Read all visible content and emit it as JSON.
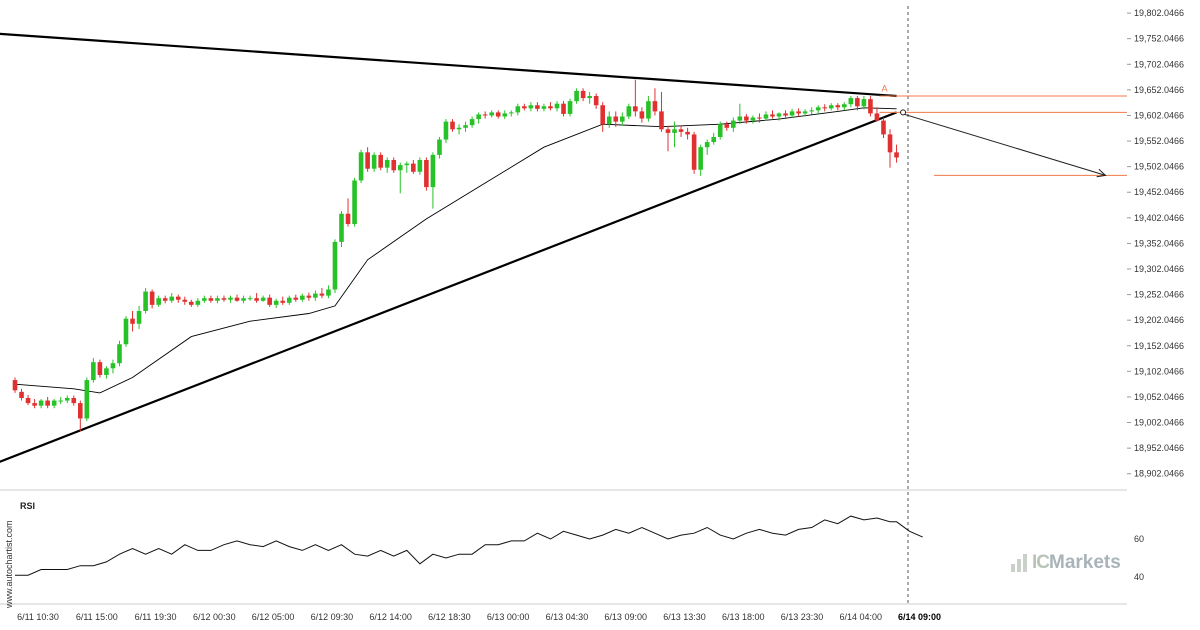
{
  "chart_data": {
    "type": "candlestick",
    "title": "",
    "price_axis": {
      "ticks": [
        "19,802.0466",
        "19,752.0466",
        "19,702.0466",
        "19,652.0466",
        "19,602.0466",
        "19,552.0466",
        "19,502.0466",
        "19,452.0466",
        "19,402.0466",
        "19,352.0466",
        "19,302.0466",
        "19,252.0466",
        "19,202.0466",
        "19,152.0466",
        "19,102.0466",
        "19,052.0466",
        "19,002.0466",
        "18,952.0466",
        "18,902.0466"
      ],
      "tick_values": [
        19802.0466,
        19752.0466,
        19702.0466,
        19652.0466,
        19602.0466,
        19552.0466,
        19502.0466,
        19452.0466,
        19402.0466,
        19352.0466,
        19302.0466,
        19252.0466,
        19202.0466,
        19152.0466,
        19102.0466,
        19052.0466,
        19002.0466,
        18952.0466,
        18902.0466
      ],
      "range": [
        18880,
        19812
      ]
    },
    "time_axis": {
      "labels": [
        "6/11 10:30",
        "6/11 15:00",
        "6/11 19:30",
        "6/12 00:30",
        "6/12 05:00",
        "6/12 09:30",
        "6/12 14:00",
        "6/12 18:30",
        "6/13 00:00",
        "6/13 04:30",
        "6/13 09:00",
        "6/13 13:30",
        "6/13 18:00",
        "6/13 23:30",
        "6/14 04:00",
        "6/14 09:00"
      ],
      "label_bar_index": [
        0,
        9,
        18,
        27,
        36,
        45,
        54,
        63,
        72,
        81,
        90,
        99,
        108,
        117,
        126,
        135
      ],
      "highlight_label": "6/14 09:00",
      "total_bars": 140
    },
    "candles_ohlc": [
      [
        19085,
        19090,
        19060,
        19065
      ],
      [
        19062,
        19068,
        19045,
        19050
      ],
      [
        19050,
        19056,
        19036,
        19040
      ],
      [
        19040,
        19048,
        19030,
        19035
      ],
      [
        19035,
        19048,
        19030,
        19045
      ],
      [
        19045,
        19052,
        19030,
        19035
      ],
      [
        19035,
        19048,
        19030,
        19045
      ],
      [
        19045,
        19052,
        19038,
        19045
      ],
      [
        19045,
        19055,
        19040,
        19050
      ],
      [
        19050,
        19055,
        19035,
        19040
      ],
      [
        19040,
        19045,
        18985,
        19010
      ],
      [
        19010,
        19090,
        19005,
        19085
      ],
      [
        19085,
        19128,
        19080,
        19120
      ],
      [
        19120,
        19125,
        19090,
        19095
      ],
      [
        19095,
        19112,
        19088,
        19108
      ],
      [
        19108,
        19125,
        19098,
        19118
      ],
      [
        19118,
        19162,
        19112,
        19155
      ],
      [
        19155,
        19210,
        19150,
        19205
      ],
      [
        19205,
        19220,
        19180,
        19195
      ],
      [
        19195,
        19230,
        19185,
        19220
      ],
      [
        19220,
        19265,
        19215,
        19258
      ],
      [
        19258,
        19262,
        19225,
        19232
      ],
      [
        19232,
        19250,
        19228,
        19245
      ],
      [
        19245,
        19250,
        19235,
        19240
      ],
      [
        19240,
        19255,
        19236,
        19248
      ],
      [
        19248,
        19252,
        19236,
        19242
      ],
      [
        19242,
        19248,
        19232,
        19238
      ],
      [
        19238,
        19242,
        19228,
        19232
      ],
      [
        19232,
        19245,
        19228,
        19240
      ],
      [
        19240,
        19250,
        19236,
        19245
      ],
      [
        19245,
        19250,
        19236,
        19240
      ],
      [
        19240,
        19250,
        19235,
        19245
      ],
      [
        19245,
        19250,
        19238,
        19242
      ],
      [
        19242,
        19250,
        19236,
        19246
      ],
      [
        19246,
        19252,
        19238,
        19240
      ],
      [
        19240,
        19250,
        19235,
        19245
      ],
      [
        19245,
        19250,
        19240,
        19245
      ],
      [
        19245,
        19255,
        19236,
        19240
      ],
      [
        19240,
        19250,
        19238,
        19246
      ],
      [
        19246,
        19252,
        19228,
        19232
      ],
      [
        19232,
        19244,
        19226,
        19240
      ],
      [
        19240,
        19248,
        19232,
        19236
      ],
      [
        19236,
        19250,
        19232,
        19246
      ],
      [
        19246,
        19252,
        19238,
        19242
      ],
      [
        19242,
        19254,
        19238,
        19250
      ],
      [
        19250,
        19256,
        19240,
        19246
      ],
      [
        19246,
        19260,
        19240,
        19254
      ],
      [
        19254,
        19265,
        19245,
        19250
      ],
      [
        19250,
        19270,
        19245,
        19262
      ],
      [
        19262,
        19360,
        19255,
        19355
      ],
      [
        19355,
        19415,
        19345,
        19410
      ],
      [
        19410,
        19440,
        19385,
        19390
      ],
      [
        19390,
        19480,
        19385,
        19475
      ],
      [
        19475,
        19535,
        19470,
        19530
      ],
      [
        19530,
        19540,
        19492,
        19498
      ],
      [
        19498,
        19530,
        19492,
        19525
      ],
      [
        19525,
        19530,
        19495,
        19500
      ],
      [
        19500,
        19520,
        19490,
        19515
      ],
      [
        19515,
        19520,
        19490,
        19495
      ],
      [
        19495,
        19510,
        19450,
        19505
      ],
      [
        19505,
        19512,
        19490,
        19508
      ],
      [
        19508,
        19515,
        19488,
        19492
      ],
      [
        19492,
        19520,
        19486,
        19515
      ],
      [
        19515,
        19520,
        19455,
        19462
      ],
      [
        19462,
        19530,
        19420,
        19525
      ],
      [
        19525,
        19560,
        19518,
        19555
      ],
      [
        19555,
        19595,
        19548,
        19590
      ],
      [
        19590,
        19595,
        19570,
        19575
      ],
      [
        19575,
        19585,
        19565,
        19578
      ],
      [
        19578,
        19590,
        19570,
        19583
      ],
      [
        19583,
        19600,
        19578,
        19595
      ],
      [
        19595,
        19608,
        19586,
        19604
      ],
      [
        19604,
        19610,
        19596,
        19602
      ],
      [
        19602,
        19612,
        19598,
        19608
      ],
      [
        19608,
        19612,
        19596,
        19600
      ],
      [
        19600,
        19612,
        19595,
        19606
      ],
      [
        19606,
        19612,
        19600,
        19608
      ],
      [
        19608,
        19625,
        19602,
        19620
      ],
      [
        19620,
        19625,
        19612,
        19616
      ],
      [
        19616,
        19628,
        19610,
        19622
      ],
      [
        19622,
        19628,
        19610,
        19615
      ],
      [
        19615,
        19625,
        19610,
        19620
      ],
      [
        19620,
        19628,
        19612,
        19616
      ],
      [
        19616,
        19630,
        19610,
        19625
      ],
      [
        19625,
        19630,
        19600,
        19605
      ],
      [
        19605,
        19635,
        19600,
        19630
      ],
      [
        19630,
        19655,
        19625,
        19650
      ],
      [
        19650,
        19655,
        19630,
        19636
      ],
      [
        19636,
        19648,
        19625,
        19640
      ],
      [
        19640,
        19645,
        19615,
        19622
      ],
      [
        19622,
        19628,
        19570,
        19585
      ],
      [
        19585,
        19610,
        19578,
        19600
      ],
      [
        19600,
        19610,
        19580,
        19590
      ],
      [
        19590,
        19608,
        19582,
        19600
      ],
      [
        19600,
        19625,
        19595,
        19620
      ],
      [
        19620,
        19672,
        19600,
        19610
      ],
      [
        19610,
        19618,
        19588,
        19596
      ],
      [
        19596,
        19640,
        19590,
        19630
      ],
      [
        19630,
        19655,
        19602,
        19610
      ],
      [
        19610,
        19648,
        19570,
        19575
      ],
      [
        19575,
        19582,
        19532,
        19568
      ],
      [
        19568,
        19590,
        19540,
        19575
      ],
      [
        19575,
        19582,
        19560,
        19570
      ],
      [
        19570,
        19578,
        19555,
        19565
      ],
      [
        19565,
        19570,
        19488,
        19496
      ],
      [
        19496,
        19545,
        19484,
        19540
      ],
      [
        19540,
        19555,
        19525,
        19550
      ],
      [
        19550,
        19568,
        19545,
        19560
      ],
      [
        19560,
        19590,
        19555,
        19585
      ],
      [
        19585,
        19590,
        19572,
        19578
      ],
      [
        19578,
        19598,
        19570,
        19592
      ],
      [
        19592,
        19625,
        19585,
        19600
      ],
      [
        19600,
        19605,
        19586,
        19592
      ],
      [
        19592,
        19602,
        19586,
        19598
      ],
      [
        19598,
        19606,
        19588,
        19596
      ],
      [
        19596,
        19610,
        19592,
        19604
      ],
      [
        19604,
        19612,
        19596,
        19600
      ],
      [
        19600,
        19608,
        19592,
        19606
      ],
      [
        19606,
        19612,
        19598,
        19602
      ],
      [
        19602,
        19615,
        19598,
        19610
      ],
      [
        19610,
        19616,
        19600,
        19606
      ],
      [
        19606,
        19614,
        19600,
        19610
      ],
      [
        19610,
        19618,
        19604,
        19612
      ],
      [
        19612,
        19622,
        19605,
        19618
      ],
      [
        19618,
        19624,
        19610,
        19616
      ],
      [
        19616,
        19626,
        19612,
        19622
      ],
      [
        19622,
        19626,
        19612,
        19618
      ],
      [
        19618,
        19628,
        19612,
        19624
      ],
      [
        19624,
        19640,
        19618,
        19636
      ],
      [
        19636,
        19640,
        19612,
        19620
      ],
      [
        19620,
        19640,
        19614,
        19634
      ],
      [
        19634,
        19640,
        19600,
        19606
      ],
      [
        19606,
        19618,
        19590,
        19592
      ],
      [
        19592,
        19598,
        19558,
        19565
      ],
      [
        19565,
        19575,
        19500,
        19530
      ],
      [
        19530,
        19545,
        19510,
        19520
      ]
    ],
    "moving_average": [
      [
        0,
        19077
      ],
      [
        9,
        19068
      ],
      [
        13,
        19060
      ],
      [
        18,
        19090
      ],
      [
        27,
        19170
      ],
      [
        36,
        19200
      ],
      [
        45,
        19215
      ],
      [
        49,
        19230
      ],
      [
        54,
        19320
      ],
      [
        63,
        19400
      ],
      [
        72,
        19470
      ],
      [
        81,
        19540
      ],
      [
        90,
        19585
      ],
      [
        99,
        19580
      ],
      [
        108,
        19585
      ],
      [
        117,
        19595
      ],
      [
        126,
        19610
      ],
      [
        130,
        19617
      ],
      [
        135,
        19615
      ]
    ],
    "pattern": {
      "name": "Triangle",
      "upper_trendline": [
        [
          -3,
          19762
        ],
        [
          135,
          19640
        ]
      ],
      "lower_trendline": [
        [
          -3,
          18922
        ],
        [
          135,
          19608
        ]
      ],
      "breakout_label": "A",
      "breakout_bar": 133,
      "breakout_price": 19645,
      "forecast_arrow": [
        [
          136,
          19605
        ],
        [
          167,
          19485
        ]
      ],
      "forecast_target": 19485,
      "horizontal_levels": [
        19640,
        19608,
        19485
      ]
    },
    "rsi": {
      "title": "RSI",
      "ticks": [
        "60",
        "40"
      ],
      "tick_values": [
        60,
        40
      ],
      "range": [
        28,
        82
      ],
      "values": [
        [
          0,
          41
        ],
        [
          2,
          41
        ],
        [
          4,
          44
        ],
        [
          6,
          44
        ],
        [
          8,
          44
        ],
        [
          10,
          46
        ],
        [
          12,
          46
        ],
        [
          14,
          48
        ],
        [
          16,
          52
        ],
        [
          18,
          55
        ],
        [
          20,
          52
        ],
        [
          22,
          55
        ],
        [
          24,
          52
        ],
        [
          26,
          57
        ],
        [
          28,
          54
        ],
        [
          30,
          54
        ],
        [
          32,
          57
        ],
        [
          34,
          59
        ],
        [
          36,
          57
        ],
        [
          38,
          56
        ],
        [
          40,
          59
        ],
        [
          42,
          56
        ],
        [
          44,
          54
        ],
        [
          46,
          57
        ],
        [
          48,
          54
        ],
        [
          50,
          57
        ],
        [
          52,
          52
        ],
        [
          54,
          51
        ],
        [
          56,
          54
        ],
        [
          58,
          51
        ],
        [
          60,
          54
        ],
        [
          62,
          47
        ],
        [
          64,
          52
        ],
        [
          66,
          50
        ],
        [
          68,
          52
        ],
        [
          70,
          52
        ],
        [
          72,
          57
        ],
        [
          74,
          57
        ],
        [
          76,
          59
        ],
        [
          78,
          59
        ],
        [
          80,
          63
        ],
        [
          82,
          60
        ],
        [
          84,
          64
        ],
        [
          86,
          62
        ],
        [
          88,
          60
        ],
        [
          90,
          62
        ],
        [
          92,
          65
        ],
        [
          94,
          63
        ],
        [
          96,
          66
        ],
        [
          98,
          63
        ],
        [
          100,
          60
        ],
        [
          102,
          62
        ],
        [
          104,
          63
        ],
        [
          106,
          66
        ],
        [
          108,
          62
        ],
        [
          110,
          60
        ],
        [
          112,
          63
        ],
        [
          114,
          65
        ],
        [
          116,
          63
        ],
        [
          118,
          62
        ],
        [
          120,
          65
        ],
        [
          122,
          66
        ],
        [
          124,
          70
        ],
        [
          126,
          68
        ],
        [
          128,
          72
        ],
        [
          130,
          70
        ],
        [
          132,
          71
        ],
        [
          134,
          69
        ],
        [
          135,
          69
        ],
        [
          137,
          64
        ],
        [
          139,
          61
        ]
      ]
    },
    "watermarks": {
      "side": "www.autochartist.com",
      "brand_ic": "IC",
      "brand_markets": "Markets"
    },
    "colors": {
      "bull": "#27c227",
      "bear": "#e03030",
      "trendline": "#000000",
      "moving_average": "#000000",
      "level_lines": "#f07a4a",
      "marker": "#f07a4a",
      "grid_separator": "#cccccc"
    }
  }
}
